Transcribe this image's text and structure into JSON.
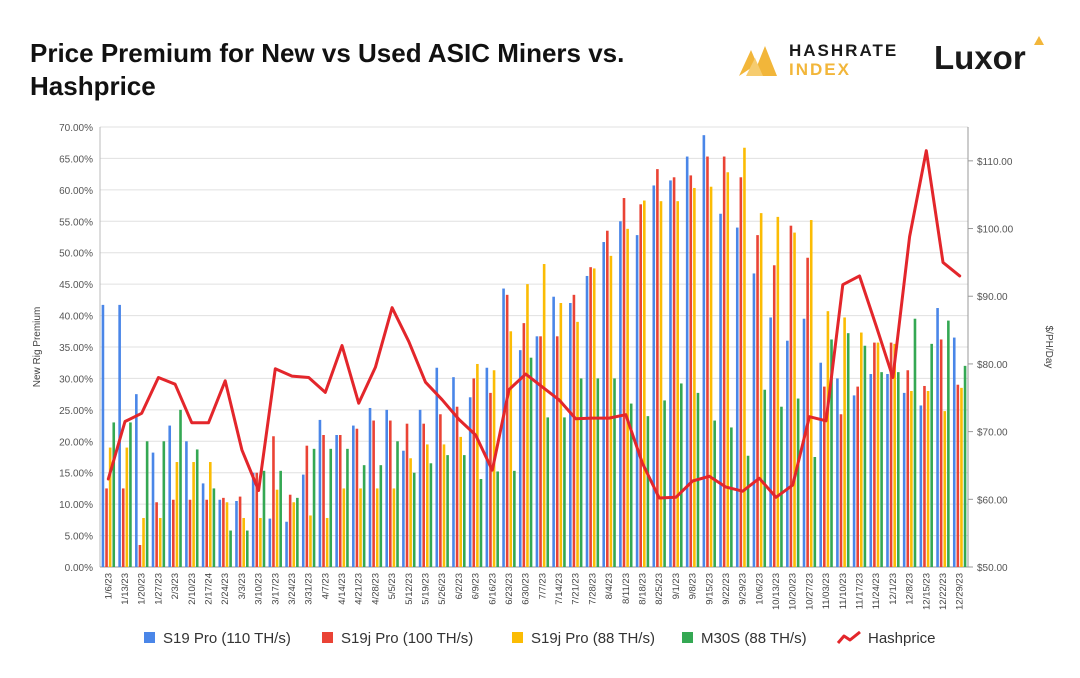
{
  "title": "Price Premium for New vs Used ASIC Miners vs. Hashprice",
  "logos": {
    "hashrate_index": "HASHRATE INDEX",
    "luxor": "Luxor"
  },
  "colors": {
    "s19pro": "#4a86e8",
    "s19jpro100": "#ea4335",
    "s19jpro88": "#fbbc04",
    "m30s": "#34a853",
    "hashprice": "#e3262b",
    "grid": "#e0e0e0",
    "hashrate_gold": "#f2b63a"
  },
  "chart_data": {
    "type": "bar",
    "ylabel": "New Rig Premium",
    "y2label": "$/PH/Day",
    "ylim": [
      0,
      70
    ],
    "y2lim": [
      50,
      115
    ],
    "yticks": [
      "0.00%",
      "5.00%",
      "10.00%",
      "15.00%",
      "20.00%",
      "25.00%",
      "30.00%",
      "35.00%",
      "40.00%",
      "45.00%",
      "50.00%",
      "55.00%",
      "60.00%",
      "65.00%",
      "70.00%"
    ],
    "y2ticks": [
      "$50.00",
      "$60.00",
      "$70.00",
      "$80.00",
      "$90.00",
      "$100.00",
      "$110.00"
    ],
    "categories": [
      "1/6/23",
      "1/13/23",
      "1/20/23",
      "1/27/23",
      "2/3/23",
      "2/10/23",
      "2/17/24",
      "2/24/23",
      "3/3/23",
      "3/10/23",
      "3/17/23",
      "3/24/23",
      "3/31/23",
      "4/7/23",
      "4/14/23",
      "4/21/23",
      "4/28/23",
      "5/5/23",
      "5/12/23",
      "5/19/23",
      "5/26/23",
      "6/2/23",
      "6/9/23",
      "6/16/23",
      "6/23/23",
      "6/30/23",
      "7/7/23",
      "7/14/23",
      "7/21/23",
      "7/28/23",
      "8/4/23",
      "8/11/23",
      "8/18/23",
      "8/25/23",
      "9/1/23",
      "9/8/23",
      "9/15/23",
      "9/22/23",
      "9/29/23",
      "10/6/23",
      "10/13/23",
      "10/20/23",
      "10/27/23",
      "11/03/23",
      "11/10/23",
      "11/17/23",
      "11/24/23",
      "12/1/23",
      "12/8/23",
      "12/15/23",
      "12/22/23",
      "12/29/23"
    ],
    "series": [
      {
        "name": "S19 Pro (110 TH/s)",
        "values": [
          41.7,
          41.7,
          27.5,
          18.2,
          22.5,
          20.0,
          13.3,
          10.7,
          10.5,
          15.0,
          7.7,
          7.2,
          14.7,
          23.4,
          21.0,
          22.5,
          25.3,
          25.0,
          18.5,
          25.0,
          31.7,
          30.2,
          27.0,
          31.7,
          44.3,
          34.5,
          36.7,
          43.0,
          42.0,
          46.3,
          51.7,
          55.0,
          52.8,
          60.7,
          61.5,
          65.3,
          68.7,
          56.2,
          54.0,
          46.7,
          39.7,
          36.0,
          39.5,
          32.5,
          30.0,
          27.3,
          30.7,
          30.7,
          27.7,
          25.7,
          41.2,
          36.5
        ]
      },
      {
        "name": "S19j Pro (100 TH/s)",
        "values": [
          12.5,
          12.5,
          3.5,
          10.3,
          10.7,
          10.7,
          10.7,
          11.0,
          11.2,
          15.0,
          20.8,
          11.5,
          19.3,
          21.0,
          21.0,
          22.0,
          23.3,
          23.3,
          22.8,
          22.8,
          24.3,
          25.5,
          30.0,
          27.7,
          43.3,
          38.8,
          36.7,
          36.7,
          43.3,
          47.7,
          53.5,
          58.7,
          57.7,
          63.3,
          62.0,
          62.3,
          65.3,
          65.3,
          62.0,
          52.8,
          48.0,
          54.3,
          49.2,
          28.7,
          24.3,
          28.7,
          35.7,
          35.7,
          31.3,
          28.8,
          36.2,
          29.0
        ]
      },
      {
        "name": "S19j Pro (88 TH/s)",
        "values": [
          19.0,
          19.0,
          7.8,
          7.8,
          16.7,
          16.7,
          16.7,
          10.3,
          7.8,
          7.8,
          12.3,
          10.3,
          8.2,
          7.8,
          12.5,
          12.5,
          12.5,
          12.5,
          17.3,
          19.5,
          19.5,
          20.7,
          32.3,
          31.3,
          37.5,
          45.0,
          48.2,
          42.0,
          39.0,
          47.5,
          49.5,
          53.8,
          58.3,
          58.2,
          58.2,
          60.3,
          60.5,
          62.8,
          66.7,
          56.3,
          55.7,
          53.2,
          55.2,
          40.7,
          39.7,
          37.3,
          35.7,
          35.5,
          28.0,
          28.0,
          24.8,
          28.5
        ]
      },
      {
        "name": "M30S (88 TH/s)",
        "values": [
          23.0,
          23.0,
          20.0,
          20.0,
          25.0,
          18.7,
          12.5,
          5.8,
          5.8,
          15.3,
          15.3,
          11.0,
          18.8,
          18.8,
          18.8,
          16.2,
          16.2,
          20.0,
          15.0,
          16.5,
          17.8,
          17.8,
          14.0,
          15.2,
          15.3,
          33.3,
          23.8,
          23.8,
          30.0,
          30.0,
          30.0,
          26.0,
          24.0,
          26.5,
          29.2,
          27.7,
          23.3,
          22.2,
          17.7,
          28.2,
          25.5,
          26.8,
          17.5,
          36.2,
          37.2,
          35.2,
          31.0,
          31.0,
          39.5,
          35.5,
          39.2,
          32.0
        ]
      },
      {
        "name": "Hashprice",
        "axis": "right",
        "values": [
          63.0,
          71.5,
          72.7,
          78.0,
          77.0,
          71.3,
          71.3,
          77.5,
          67.3,
          61.3,
          79.3,
          78.2,
          78.0,
          75.8,
          82.7,
          74.2,
          79.5,
          88.3,
          83.3,
          77.3,
          74.7,
          71.8,
          69.5,
          64.3,
          76.2,
          78.5,
          76.6,
          74.7,
          71.9,
          72.0,
          72.0,
          72.5,
          65.3,
          60.2,
          60.3,
          62.7,
          63.4,
          61.8,
          61.2,
          63.1,
          60.3,
          62.1,
          72.2,
          71.6,
          91.7,
          93.0,
          85.6,
          78.0,
          98.8,
          111.5,
          95.0,
          93.0
        ]
      }
    ]
  }
}
